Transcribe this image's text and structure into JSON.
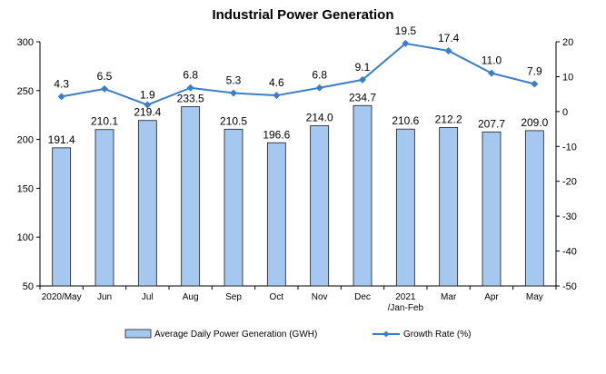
{
  "chart_data": {
    "type": "bar-line-combo",
    "title": "Industrial Power Generation",
    "categories": [
      "2020/May",
      "Jun",
      "Jul",
      "Aug",
      "Sep",
      "Oct",
      "Nov",
      "Dec",
      "2021\n/Jan-Feb",
      "Mar",
      "Apr",
      "May"
    ],
    "series": [
      {
        "name": "Average Daily Power Generation (GWH)",
        "kind": "bar",
        "axis": "left",
        "color": "#a4c8f0",
        "values": [
          191.4,
          210.1,
          219.4,
          233.5,
          210.5,
          196.6,
          214.0,
          234.7,
          210.6,
          212.2,
          207.7,
          209.0
        ]
      },
      {
        "name": "Growth Rate (%)",
        "kind": "line",
        "axis": "right",
        "color": "#3a7ec8",
        "values": [
          4.3,
          6.5,
          1.9,
          6.8,
          5.3,
          4.6,
          6.8,
          9.1,
          19.5,
          17.4,
          11.0,
          7.9
        ]
      }
    ],
    "y_left": {
      "min": 50,
      "max": 300,
      "ticks": [
        50,
        100,
        150,
        200,
        250,
        300
      ]
    },
    "y_right": {
      "min": -50,
      "max": 20,
      "ticks": [
        -50,
        -40,
        -30,
        -20,
        -10,
        0,
        10,
        20
      ]
    },
    "grid": false,
    "legend_position": "bottom"
  }
}
